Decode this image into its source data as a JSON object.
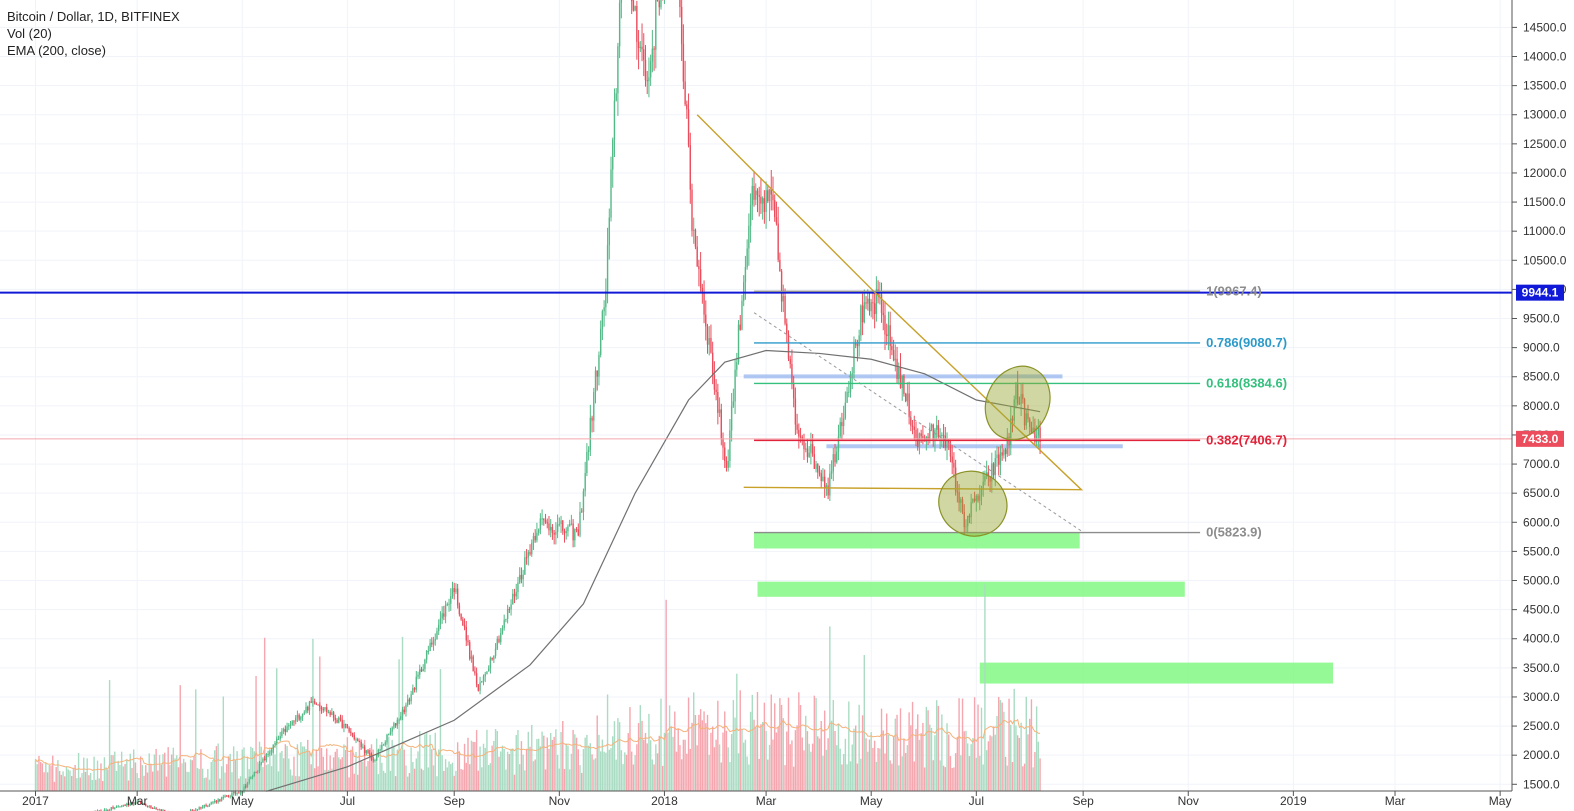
{
  "legend": {
    "symbol": "Bitcoin / Dollar, 1D, BITFINEX",
    "volume": "Vol (20)",
    "ema": "EMA (200, close)"
  },
  "colors": {
    "up": "#53b987",
    "down": "#eb4d5c",
    "vol_up": "#a9dcc3",
    "vol_down": "#f5a6ae",
    "ema": "#707070",
    "vol_ma": "#f5b27a",
    "blue_line": "#1019d8",
    "triangle": "#c8a12b",
    "grid": "#f0f3fa",
    "fib_786": "#2c9ac9",
    "fib_618": "#35c07e",
    "fib_382": "#e0233a",
    "fib_0": "#8c8c8c",
    "fib_1": "#8c8c8c",
    "zone_blue": "#8fb1ec",
    "zone_green": "#7af77c",
    "ellipse_fill": "#9aa632",
    "current_price_bg": "#eb4d5c",
    "blue_tag_bg": "#1019d8"
  },
  "chart_data": {
    "type": "candlestick",
    "title": "Bitcoin / Dollar, 1D, BITFINEX",
    "xlabel": "",
    "ylabel": "",
    "x_range": [
      "2016-12-20",
      "2019-05-20"
    ],
    "ylim": [
      1370,
      15000
    ],
    "y_ticks": [
      "1500.0",
      "2000.0",
      "2500.0",
      "3000.0",
      "3500.0",
      "4000.0",
      "4500.0",
      "5000.0",
      "5500.0",
      "6000.0",
      "6500.0",
      "7000.0",
      "7500.0",
      "8000.0",
      "8500.0",
      "9000.0",
      "9500.0",
      "10000.0",
      "10500.0",
      "11000.0",
      "11500.0",
      "12000.0",
      "12500.0",
      "13000.0",
      "13500.0",
      "14000.0",
      "14500.0"
    ],
    "x_ticks": [
      {
        "date": "2017-01-01",
        "label": "2017"
      },
      {
        "date": "2017-03-01",
        "label": "Mar"
      },
      {
        "date": "2017-05-01",
        "label": "May"
      },
      {
        "date": "2017-07-01",
        "label": "Jul"
      },
      {
        "date": "2017-09-01",
        "label": "Sep"
      },
      {
        "date": "2017-11-01",
        "label": "Nov"
      },
      {
        "date": "2018-01-01",
        "label": "2018"
      },
      {
        "date": "2018-03-01",
        "label": "Mar"
      },
      {
        "date": "2018-05-01",
        "label": "May"
      },
      {
        "date": "2018-07-01",
        "label": "Jul"
      },
      {
        "date": "2018-09-01",
        "label": "Sep"
      },
      {
        "date": "2018-11-01",
        "label": "Nov"
      },
      {
        "date": "2019-01-01",
        "label": "2019"
      },
      {
        "date": "2019-03-01",
        "label": "Mar"
      },
      {
        "date": "2019-05-01",
        "label": "May"
      }
    ],
    "price_path": [
      [
        "2017-01-01",
        980
      ],
      [
        "2017-01-15",
        820
      ],
      [
        "2017-02-01",
        980
      ],
      [
        "2017-03-01",
        1200
      ],
      [
        "2017-03-25",
        950
      ],
      [
        "2017-05-01",
        1400
      ],
      [
        "2017-05-25",
        2400
      ],
      [
        "2017-06-12",
        2950
      ],
      [
        "2017-07-01",
        2450
      ],
      [
        "2017-07-16",
        1900
      ],
      [
        "2017-08-05",
        2900
      ],
      [
        "2017-09-01",
        4900
      ],
      [
        "2017-09-15",
        3100
      ],
      [
        "2017-10-01",
        4350
      ],
      [
        "2017-10-20",
        6000
      ],
      [
        "2017-11-12",
        5800
      ],
      [
        "2017-11-28",
        10000
      ],
      [
        "2017-12-08",
        16000
      ],
      [
        "2017-12-22",
        13500
      ],
      [
        "2018-01-06",
        17000
      ],
      [
        "2018-01-17",
        11200
      ],
      [
        "2018-02-06",
        6900
      ],
      [
        "2018-02-20",
        11500
      ],
      [
        "2018-03-05",
        11450
      ],
      [
        "2018-03-18",
        7700
      ],
      [
        "2018-04-06",
        6600
      ],
      [
        "2018-04-25",
        9500
      ],
      [
        "2018-05-05",
        9800
      ],
      [
        "2018-05-28",
        7400
      ],
      [
        "2018-06-12",
        7600
      ],
      [
        "2018-06-24",
        6000
      ],
      [
        "2018-07-05",
        6600
      ],
      [
        "2018-07-20",
        7400
      ],
      [
        "2018-07-24",
        8300
      ],
      [
        "2018-08-02",
        7500
      ],
      [
        "2018-08-07",
        7433
      ]
    ],
    "series": [
      {
        "name": "EMA (200, close)",
        "points": [
          [
            "2017-05-15",
            1380
          ],
          [
            "2017-07-01",
            1800
          ],
          [
            "2017-09-01",
            2600
          ],
          [
            "2017-10-15",
            3550
          ],
          [
            "2017-11-15",
            4600
          ],
          [
            "2017-12-15",
            6500
          ],
          [
            "2018-01-15",
            8100
          ],
          [
            "2018-02-05",
            8750
          ],
          [
            "2018-03-01",
            8950
          ],
          [
            "2018-04-01",
            8900
          ],
          [
            "2018-05-01",
            8800
          ],
          [
            "2018-06-01",
            8550
          ],
          [
            "2018-07-01",
            8100
          ],
          [
            "2018-08-07",
            7900
          ]
        ]
      },
      {
        "name": "Vol (20)"
      }
    ],
    "horizontal_line": {
      "value": 9944.1,
      "label": "9944.1"
    },
    "current_price": {
      "value": 7433.0,
      "label": "7433.0"
    },
    "fibonacci": {
      "start": "2018-02-22",
      "end": "2018-07-09",
      "levels": [
        {
          "ratio": "1",
          "value": 9967.4,
          "label": "1(9967.4)",
          "color": "#8c8c8c"
        },
        {
          "ratio": "0.786",
          "value": 9080.7,
          "label": "0.786(9080.7)",
          "color": "#2c9ac9"
        },
        {
          "ratio": "0.618",
          "value": 8384.6,
          "label": "0.618(8384.6)",
          "color": "#35c07e"
        },
        {
          "ratio": "0.382",
          "value": 7406.7,
          "label": "0.382(7406.7)",
          "color": "#e0233a"
        },
        {
          "ratio": "0",
          "value": 5823.9,
          "label": "0(5823.9)",
          "color": "#8c8c8c"
        }
      ]
    },
    "zones": [
      {
        "color": "blue",
        "from": "2018-02-16",
        "to": "2018-08-20",
        "low": 8480,
        "high": 8540
      },
      {
        "color": "blue",
        "from": "2018-04-05",
        "to": "2018-09-24",
        "low": 7280,
        "high": 7340
      },
      {
        "color": "green",
        "from": "2018-02-22",
        "to": "2018-08-30",
        "low": 5550,
        "high": 5830
      },
      {
        "color": "green",
        "from": "2018-02-24",
        "to": "2018-10-30",
        "low": 4720,
        "high": 4980
      },
      {
        "color": "green",
        "from": "2018-07-03",
        "to": "2019-01-24",
        "low": 3230,
        "high": 3590
      }
    ],
    "triangle": [
      [
        "2018-01-20",
        13000
      ],
      [
        "2018-05-03",
        9950
      ],
      [
        "2018-08-31",
        6560
      ],
      [
        "2018-02-16",
        6600
      ]
    ],
    "dashed_trendline": [
      [
        "2018-02-22",
        9600
      ],
      [
        "2018-08-31",
        5850
      ]
    ],
    "ellipses": [
      {
        "center_date": "2018-07-25",
        "center_value": 8050,
        "rx_days": 18,
        "ry_value": 650
      },
      {
        "center_date": "2018-06-29",
        "center_value": 6320,
        "rx_days": 20,
        "ry_value": 550
      }
    ]
  }
}
